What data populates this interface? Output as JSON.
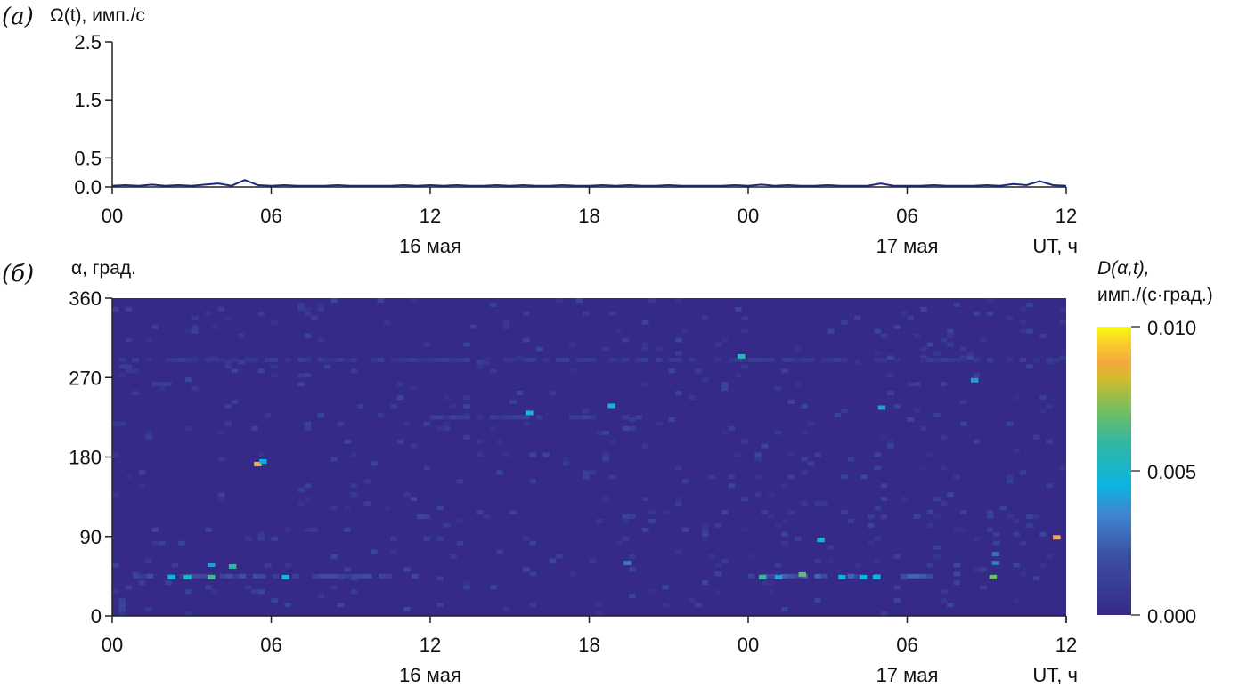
{
  "chart_data": [
    {
      "type": "line",
      "panel_label": "(a)",
      "ylabel": "Ω(t), имп./с",
      "xlabel": "UT, ч",
      "ylim": [
        0,
        2.5
      ],
      "yticks": [
        "0.0",
        "0.5",
        "1.5",
        "2.5"
      ],
      "ytick_values": [
        0,
        0.5,
        1.5,
        2.5
      ],
      "xlim": [
        0,
        36
      ],
      "xticks": [
        "00",
        "06",
        "12",
        "18",
        "00",
        "06",
        "12"
      ],
      "xtick_values": [
        0,
        6,
        12,
        18,
        24,
        30,
        36
      ],
      "date_labels": [
        {
          "text": "16 мая",
          "x": 12
        },
        {
          "text": "17 мая",
          "x": 30
        }
      ],
      "line_color": "#1f2a7a",
      "series": [
        {
          "x_step_hours": 0.5,
          "values": [
            0.02,
            0.03,
            0.02,
            0.04,
            0.02,
            0.03,
            0.02,
            0.04,
            0.06,
            0.02,
            0.12,
            0.03,
            0.02,
            0.03,
            0.02,
            0.02,
            0.02,
            0.03,
            0.02,
            0.02,
            0.02,
            0.02,
            0.03,
            0.02,
            0.03,
            0.02,
            0.03,
            0.02,
            0.02,
            0.03,
            0.02,
            0.03,
            0.02,
            0.02,
            0.03,
            0.02,
            0.02,
            0.03,
            0.02,
            0.03,
            0.02,
            0.02,
            0.03,
            0.02,
            0.02,
            0.02,
            0.02,
            0.03,
            0.02,
            0.04,
            0.02,
            0.03,
            0.02,
            0.02,
            0.03,
            0.02,
            0.02,
            0.02,
            0.06,
            0.02,
            0.02,
            0.02,
            0.03,
            0.02,
            0.02,
            0.02,
            0.03,
            0.02,
            0.05,
            0.03,
            0.1,
            0.03,
            0.02
          ]
        }
      ]
    },
    {
      "type": "heatmap",
      "panel_label": "(б)",
      "ylabel": "α, град.",
      "xlabel": "UT, ч",
      "ylim": [
        0,
        360
      ],
      "yticks": [
        "0",
        "90",
        "180",
        "270",
        "360"
      ],
      "ytick_values": [
        0,
        90,
        180,
        270,
        360
      ],
      "xlim": [
        0,
        36
      ],
      "xticks": [
        "00",
        "06",
        "12",
        "18",
        "00",
        "06",
        "12"
      ],
      "xtick_values": [
        0,
        6,
        12,
        18,
        24,
        30,
        36
      ],
      "date_labels": [
        {
          "text": "16 мая",
          "x": 12
        },
        {
          "text": "17 мая",
          "x": 30
        }
      ],
      "colorbar": {
        "label_line1": "D(α,t),",
        "label_line2": "имп./(с·град.)",
        "range": [
          0,
          0.01
        ],
        "ticks": [
          "0.000",
          "0.005",
          "0.010"
        ],
        "tick_values": [
          0,
          0.005,
          0.01
        ],
        "colormap": "parula"
      },
      "background_value": 0.0,
      "bands": [
        {
          "t_start": 0.8,
          "t_end": 12.0,
          "alpha": 45,
          "value": 0.0015
        },
        {
          "t_start": 24.0,
          "t_end": 31.0,
          "alpha": 45,
          "value": 0.002
        },
        {
          "t_start": 12.0,
          "t_end": 20.0,
          "alpha": 225,
          "value": 0.001
        },
        {
          "t_start": 0.0,
          "t_end": 36.0,
          "alpha": 290,
          "value": 0.0008
        }
      ],
      "hotspots": [
        {
          "t": 5.35,
          "alpha": 172,
          "value": 0.009
        },
        {
          "t": 5.55,
          "alpha": 175,
          "value": 0.0045
        },
        {
          "t": 23.6,
          "alpha": 294,
          "value": 0.0055
        },
        {
          "t": 26.6,
          "alpha": 86,
          "value": 0.005
        },
        {
          "t": 35.5,
          "alpha": 89,
          "value": 0.0088
        },
        {
          "t": 33.1,
          "alpha": 44,
          "value": 0.007
        },
        {
          "t": 25.9,
          "alpha": 47,
          "value": 0.0068
        },
        {
          "t": 24.4,
          "alpha": 44,
          "value": 0.006
        },
        {
          "t": 3.6,
          "alpha": 44,
          "value": 0.0062
        },
        {
          "t": 4.4,
          "alpha": 56,
          "value": 0.006
        },
        {
          "t": 3.6,
          "alpha": 58,
          "value": 0.004
        },
        {
          "t": 2.1,
          "alpha": 44,
          "value": 0.0045
        },
        {
          "t": 2.7,
          "alpha": 44,
          "value": 0.005
        },
        {
          "t": 6.4,
          "alpha": 44,
          "value": 0.0048
        },
        {
          "t": 15.6,
          "alpha": 230,
          "value": 0.005
        },
        {
          "t": 18.7,
          "alpha": 238,
          "value": 0.0048
        },
        {
          "t": 28.9,
          "alpha": 236,
          "value": 0.004
        },
        {
          "t": 32.4,
          "alpha": 267,
          "value": 0.004
        },
        {
          "t": 28.2,
          "alpha": 44,
          "value": 0.0045
        },
        {
          "t": 28.7,
          "alpha": 44,
          "value": 0.0045
        },
        {
          "t": 27.4,
          "alpha": 44,
          "value": 0.0045
        },
        {
          "t": 25.0,
          "alpha": 44,
          "value": 0.004
        },
        {
          "t": 19.3,
          "alpha": 60,
          "value": 0.003
        },
        {
          "t": 33.2,
          "alpha": 60,
          "value": 0.003
        },
        {
          "t": 33.2,
          "alpha": 70,
          "value": 0.0028
        }
      ]
    }
  ]
}
